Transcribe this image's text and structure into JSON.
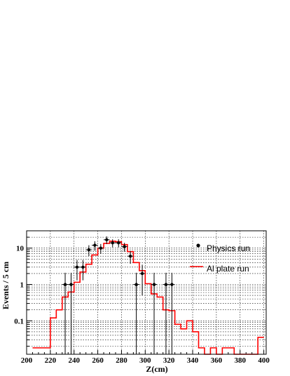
{
  "chart_data": {
    "type": "line",
    "xlabel": "Z(cm)",
    "ylabel": "Events / 5 cm",
    "xlim": [
      200,
      402
    ],
    "ylim": [
      0.012,
      30
    ],
    "y_scale": "log",
    "grid": true,
    "legend_position": "top-right",
    "x_ticks": [
      200,
      220,
      240,
      260,
      280,
      300,
      320,
      340,
      360,
      380,
      400
    ],
    "x_tick_labels": [
      "200",
      "220",
      "240",
      "260",
      "280",
      "300",
      "320",
      "340",
      "360",
      "380",
      "400"
    ],
    "y_ticks": [
      0.1,
      1,
      10
    ],
    "y_tick_labels": [
      "0.1",
      "1",
      "10"
    ],
    "series": [
      {
        "name": "Physics run",
        "kind": "points-with-errors",
        "color": "#000000",
        "x": [
          232.5,
          237.5,
          242.5,
          247.5,
          252.5,
          257.5,
          262.5,
          267.5,
          272.5,
          277.5,
          282.5,
          287.5,
          292.5,
          297.5,
          307.5,
          317.5,
          322.5
        ],
        "y": [
          1,
          1,
          3,
          3,
          9,
          12,
          10,
          17,
          14,
          14,
          11,
          6,
          1,
          2,
          1,
          1,
          1
        ],
        "y_low": [
          0.012,
          0.012,
          1.3,
          1.3,
          6,
          8.5,
          7,
          13,
          10.5,
          10.5,
          8,
          3.7,
          0.012,
          0.5,
          0.012,
          0.012,
          0.012
        ],
        "y_high": [
          2.1,
          2.1,
          4.7,
          4.7,
          12,
          15.5,
          13,
          21,
          17.5,
          17.5,
          14,
          8.3,
          2.1,
          3.5,
          2.1,
          2.1,
          2.1
        ]
      },
      {
        "name": "Al plate run",
        "kind": "step-histogram",
        "color": "#ff0000",
        "bin_edges": [
          205,
          210,
          215,
          220,
          225,
          230,
          235,
          240,
          245,
          250,
          255,
          260,
          265,
          270,
          275,
          280,
          285,
          290,
          295,
          300,
          305,
          310,
          315,
          320,
          325,
          330,
          335,
          340,
          345,
          350,
          355,
          360,
          365,
          370,
          375,
          380,
          385,
          390,
          395,
          400
        ],
        "values": [
          0.018,
          0.018,
          0.018,
          0.12,
          0.2,
          0.45,
          0.62,
          1.15,
          2.2,
          3.6,
          6.5,
          10,
          13.5,
          15.5,
          15,
          12.5,
          8,
          4,
          2.4,
          1.05,
          0.55,
          0.45,
          0.2,
          0.19,
          0.08,
          0.06,
          0.1,
          0.05,
          0.018,
          0.012,
          0.018,
          0.012,
          0.018,
          0.018,
          0.012,
          0.012,
          0.012,
          0.012,
          0.035
        ]
      }
    ]
  }
}
